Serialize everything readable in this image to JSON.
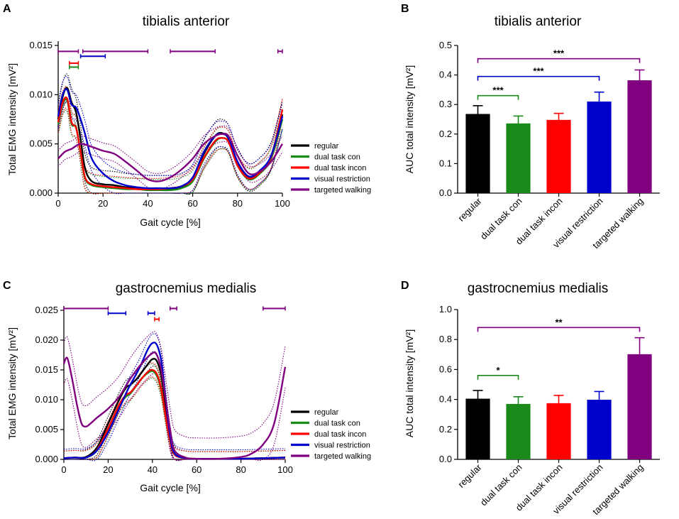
{
  "colors": {
    "regular": "#000000",
    "dual task con": "#1a8a1a",
    "dual task incon": "#ff0000",
    "visual restriction": "#0000cc",
    "targeted walking": "#800080"
  },
  "chart_data": [
    {
      "panel": "A",
      "type": "line",
      "title": "tibialis anterior",
      "xlabel": "Gait cycle [%]",
      "ylabel": "Total EMG intensity [mV²]",
      "xlim": [
        0,
        100
      ],
      "ylim": [
        0,
        0.015
      ],
      "xticks": [
        0,
        20,
        40,
        60,
        80,
        100
      ],
      "yticks": [
        0.0,
        0.005,
        0.01,
        0.015
      ],
      "ytick_labels": [
        "0.000",
        "0.005",
        "0.010",
        "0.015"
      ],
      "legend": [
        "regular",
        "dual task con",
        "dual task incon",
        "visual restriction",
        "targeted walking"
      ],
      "series": [
        {
          "name": "regular",
          "x": [
            0,
            2,
            4,
            6,
            8,
            10,
            12,
            15,
            20,
            25,
            30,
            35,
            40,
            45,
            50,
            55,
            60,
            65,
            70,
            73,
            76,
            80,
            85,
            90,
            95,
            100
          ],
          "y": [
            0.0075,
            0.0098,
            0.0107,
            0.0092,
            0.0082,
            0.0055,
            0.0025,
            0.0012,
            0.0009,
            0.0008,
            0.0006,
            0.0005,
            0.0004,
            0.0004,
            0.0004,
            0.0006,
            0.0015,
            0.004,
            0.0058,
            0.0061,
            0.0055,
            0.003,
            0.0016,
            0.0022,
            0.0038,
            0.008
          ],
          "band": 0.0014
        },
        {
          "name": "dual task con",
          "x": [
            0,
            2,
            4,
            6,
            8,
            10,
            12,
            15,
            20,
            25,
            30,
            35,
            40,
            45,
            50,
            55,
            60,
            65,
            70,
            73,
            76,
            80,
            85,
            90,
            95,
            100
          ],
          "y": [
            0.007,
            0.009,
            0.0094,
            0.007,
            0.0067,
            0.004,
            0.0015,
            0.0008,
            0.0006,
            0.0005,
            0.0004,
            0.0004,
            0.0003,
            0.0003,
            0.0003,
            0.0005,
            0.0012,
            0.0035,
            0.0052,
            0.0056,
            0.0052,
            0.0028,
            0.0014,
            0.002,
            0.0035,
            0.0075
          ],
          "band": 0.0011
        },
        {
          "name": "dual task incon",
          "x": [
            0,
            2,
            4,
            6,
            8,
            10,
            12,
            15,
            20,
            25,
            30,
            35,
            40,
            45,
            50,
            55,
            60,
            65,
            70,
            73,
            76,
            80,
            85,
            90,
            95,
            100
          ],
          "y": [
            0.0072,
            0.0092,
            0.0096,
            0.0072,
            0.0066,
            0.0042,
            0.0016,
            0.0009,
            0.0007,
            0.0006,
            0.0005,
            0.0004,
            0.0004,
            0.0004,
            0.0005,
            0.0007,
            0.0014,
            0.0036,
            0.0053,
            0.0056,
            0.0052,
            0.0028,
            0.0015,
            0.0021,
            0.0037,
            0.0085
          ],
          "band": 0.0011
        },
        {
          "name": "visual restriction",
          "x": [
            0,
            2,
            4,
            6,
            8,
            10,
            12,
            15,
            20,
            25,
            30,
            35,
            40,
            45,
            50,
            55,
            60,
            65,
            70,
            73,
            76,
            80,
            85,
            90,
            95,
            100
          ],
          "y": [
            0.0078,
            0.01,
            0.0105,
            0.009,
            0.0087,
            0.0075,
            0.006,
            0.0035,
            0.002,
            0.0012,
            0.0008,
            0.0006,
            0.0005,
            0.0005,
            0.0005,
            0.0007,
            0.0016,
            0.0042,
            0.0058,
            0.006,
            0.0056,
            0.0032,
            0.0017,
            0.0023,
            0.0038,
            0.0078
          ],
          "band": 0.0013
        },
        {
          "name": "targeted walking",
          "x": [
            0,
            3,
            6,
            10,
            15,
            20,
            25,
            30,
            35,
            40,
            45,
            50,
            55,
            60,
            65,
            70,
            73,
            76,
            80,
            85,
            90,
            95,
            100
          ],
          "y": [
            0.0035,
            0.0042,
            0.0045,
            0.005,
            0.0047,
            0.0043,
            0.004,
            0.0032,
            0.0023,
            0.0014,
            0.0012,
            0.0016,
            0.0024,
            0.0035,
            0.005,
            0.0058,
            0.006,
            0.0058,
            0.0038,
            0.002,
            0.0022,
            0.0032,
            0.005
          ],
          "band": 0.0008
        }
      ],
      "sig_bars": [
        {
          "series": "targeted walking",
          "from": 0,
          "to": 9,
          "y": 0.0144
        },
        {
          "series": "targeted walking",
          "from": 11,
          "to": 40,
          "y": 0.0144
        },
        {
          "series": "targeted walking",
          "from": 50,
          "to": 70,
          "y": 0.0144
        },
        {
          "series": "targeted walking",
          "from": 98,
          "to": 100,
          "y": 0.0144
        },
        {
          "series": "visual restriction",
          "from": 10,
          "to": 21,
          "y": 0.0139
        },
        {
          "series": "dual task incon",
          "from": 5,
          "to": 9,
          "y": 0.0132
        },
        {
          "series": "dual task con",
          "from": 5,
          "to": 9,
          "y": 0.0128
        }
      ]
    },
    {
      "panel": "B",
      "type": "bar",
      "title": "tibialis anterior",
      "xlabel": "",
      "ylabel": "AUC total intensity [mV²]",
      "ylim": [
        0,
        0.5
      ],
      "yticks": [
        0.0,
        0.1,
        0.2,
        0.3,
        0.4,
        0.5
      ],
      "ytick_labels": [
        "0.0",
        "0.1",
        "0.2",
        "0.3",
        "0.4",
        "0.5"
      ],
      "categories": [
        "regular",
        "dual task con",
        "dual task incon",
        "visual restriction",
        "targeted walking"
      ],
      "values": [
        0.268,
        0.236,
        0.248,
        0.31,
        0.382
      ],
      "errors": [
        0.028,
        0.025,
        0.022,
        0.032,
        0.035
      ],
      "brackets": [
        {
          "from": 0,
          "to": 1,
          "y": 0.33,
          "label": "***",
          "series": "dual task con"
        },
        {
          "from": 0,
          "to": 3,
          "y": 0.395,
          "label": "***",
          "series": "visual restriction"
        },
        {
          "from": 0,
          "to": 4,
          "y": 0.455,
          "label": "***",
          "series": "targeted walking"
        }
      ]
    },
    {
      "panel": "C",
      "type": "line",
      "title": "gastrocnemius medialis",
      "xlabel": "Gait cycle [%]",
      "ylabel": "Total EMG intensity [mV²]",
      "xlim": [
        0,
        100
      ],
      "ylim": [
        0,
        0.025
      ],
      "xticks": [
        0,
        20,
        40,
        60,
        80,
        100
      ],
      "yticks": [
        0.0,
        0.005,
        0.01,
        0.015,
        0.02,
        0.025
      ],
      "ytick_labels": [
        "0.000",
        "0.005",
        "0.010",
        "0.015",
        "0.020",
        "0.025"
      ],
      "legend": [
        "regular",
        "dual task con",
        "dual task incon",
        "visual restriction",
        "targeted walking"
      ],
      "series": [
        {
          "name": "regular",
          "x": [
            0,
            5,
            10,
            15,
            20,
            25,
            28,
            30,
            33,
            35,
            38,
            40,
            42,
            44,
            46,
            48,
            50,
            55,
            60,
            70,
            80,
            90,
            100
          ],
          "y": [
            0.0002,
            0.0003,
            0.0004,
            0.002,
            0.006,
            0.01,
            0.012,
            0.0125,
            0.0135,
            0.0145,
            0.016,
            0.0168,
            0.0165,
            0.014,
            0.009,
            0.004,
            0.001,
            0.0002,
            0.0001,
            0.0001,
            0.0001,
            0.0002,
            0.0003
          ],
          "band": 0.0012
        },
        {
          "name": "dual task con",
          "x": [
            0,
            5,
            10,
            15,
            20,
            25,
            28,
            30,
            33,
            35,
            38,
            40,
            42,
            44,
            46,
            48,
            50,
            55,
            60,
            70,
            80,
            90,
            100
          ],
          "y": [
            0.0002,
            0.0003,
            0.0003,
            0.0015,
            0.005,
            0.009,
            0.0105,
            0.011,
            0.0125,
            0.0135,
            0.0145,
            0.0148,
            0.014,
            0.0115,
            0.007,
            0.003,
            0.0008,
            0.0002,
            0.0001,
            0.0001,
            0.0001,
            0.0002,
            0.0003
          ],
          "band": 0.0012
        },
        {
          "name": "dual task incon",
          "x": [
            0,
            5,
            10,
            15,
            20,
            25,
            28,
            30,
            33,
            35,
            38,
            40,
            42,
            44,
            46,
            48,
            50,
            55,
            60,
            70,
            80,
            90,
            100
          ],
          "y": [
            0.0002,
            0.0003,
            0.0003,
            0.0016,
            0.0052,
            0.0092,
            0.0108,
            0.0112,
            0.0125,
            0.0135,
            0.0147,
            0.015,
            0.0143,
            0.0118,
            0.0072,
            0.0031,
            0.0008,
            0.0002,
            0.0001,
            0.0001,
            0.0001,
            0.0002,
            0.0003
          ],
          "band": 0.0012
        },
        {
          "name": "visual restriction",
          "x": [
            0,
            5,
            10,
            15,
            20,
            25,
            28,
            30,
            33,
            35,
            38,
            40,
            42,
            44,
            46,
            48,
            50,
            55,
            60,
            70,
            80,
            90,
            100
          ],
          "y": [
            0.0002,
            0.0003,
            0.0003,
            0.0015,
            0.0045,
            0.0085,
            0.011,
            0.0125,
            0.0145,
            0.016,
            0.0185,
            0.0195,
            0.0192,
            0.0165,
            0.01,
            0.004,
            0.001,
            0.0002,
            0.0001,
            0.0001,
            0.0001,
            0.0002,
            0.0003
          ],
          "band": 0.0015
        },
        {
          "name": "targeted walking",
          "x": [
            0,
            1,
            2,
            4,
            6,
            8,
            10,
            12,
            15,
            20,
            25,
            30,
            35,
            40,
            42,
            44,
            46,
            48,
            50,
            55,
            60,
            70,
            80,
            85,
            90,
            95,
            100
          ],
          "y": [
            0.016,
            0.017,
            0.0165,
            0.013,
            0.009,
            0.006,
            0.0055,
            0.006,
            0.007,
            0.0085,
            0.0105,
            0.0135,
            0.016,
            0.0178,
            0.0175,
            0.015,
            0.01,
            0.005,
            0.0015,
            0.0003,
            0.0001,
            0.0001,
            0.0004,
            0.001,
            0.0025,
            0.006,
            0.0155
          ],
          "band": 0.0035
        }
      ],
      "sig_bars": [
        {
          "series": "targeted walking",
          "from": 0,
          "to": 20,
          "y": 0.0253
        },
        {
          "series": "targeted walking",
          "from": 48,
          "to": 51,
          "y": 0.0253
        },
        {
          "series": "targeted walking",
          "from": 90,
          "to": 100,
          "y": 0.0253
        },
        {
          "series": "visual restriction",
          "from": 20,
          "to": 28,
          "y": 0.0245
        },
        {
          "series": "visual restriction",
          "from": 38,
          "to": 41,
          "y": 0.0245
        },
        {
          "series": "dual task incon",
          "from": 41,
          "to": 43,
          "y": 0.0235
        }
      ]
    },
    {
      "panel": "D",
      "type": "bar",
      "title": "gastrocnemius medialis",
      "xlabel": "",
      "ylabel": "AUC total intensity [mV²]",
      "ylim": [
        0,
        1.0
      ],
      "yticks": [
        0.0,
        0.2,
        0.4,
        0.6,
        0.8,
        1.0
      ],
      "ytick_labels": [
        "0.0",
        "0.2",
        "0.4",
        "0.6",
        "0.8",
        "1.0"
      ],
      "categories": [
        "regular",
        "dual task con",
        "dual task incon",
        "visual restriction",
        "targeted walking"
      ],
      "values": [
        0.405,
        0.37,
        0.375,
        0.398,
        0.702
      ],
      "errors": [
        0.055,
        0.048,
        0.052,
        0.055,
        0.11
      ],
      "brackets": [
        {
          "from": 0,
          "to": 1,
          "y": 0.56,
          "label": "*",
          "series": "dual task con"
        },
        {
          "from": 0,
          "to": 4,
          "y": 0.88,
          "label": "**",
          "series": "targeted walking"
        }
      ]
    }
  ]
}
